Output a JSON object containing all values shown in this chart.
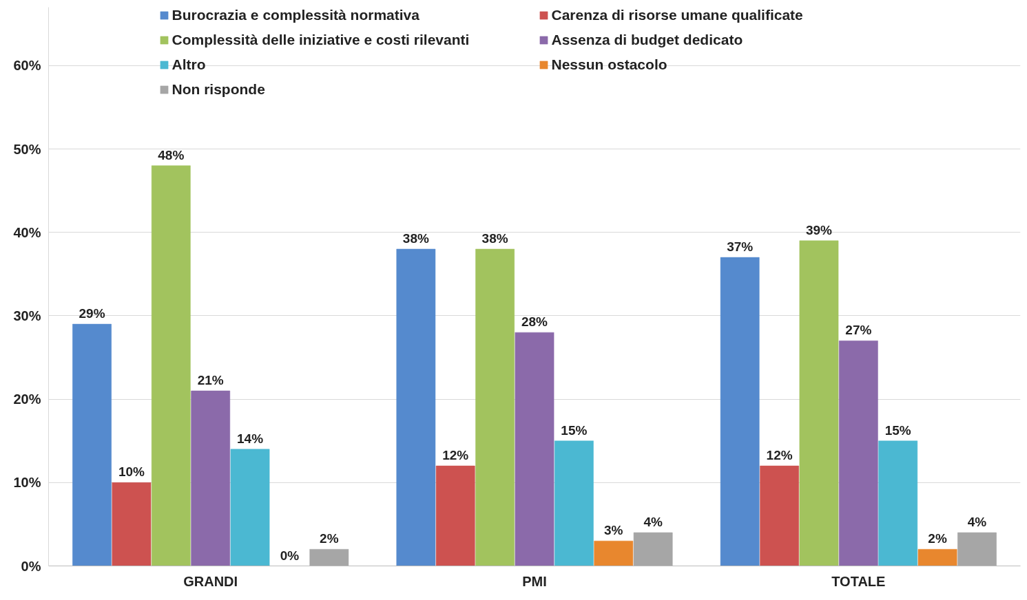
{
  "chart_data": {
    "type": "bar",
    "categories": [
      "GRANDI",
      "PMI",
      "TOTALE"
    ],
    "series": [
      {
        "name": "Burocrazia e complessità normativa",
        "color": "#558ace",
        "values": [
          29,
          38,
          37
        ],
        "value_labels": [
          "29%",
          "38%",
          "37%"
        ]
      },
      {
        "name": "Carenza di risorse umane qualificate",
        "color": "#cd5250",
        "values": [
          10,
          12,
          12
        ],
        "value_labels": [
          "10%",
          "12%",
          "12%"
        ]
      },
      {
        "name": "Complessità delle iniziative e costi rilevanti",
        "color": "#a2c35e",
        "values": [
          48,
          38,
          39
        ],
        "value_labels": [
          "48%",
          "38%",
          "39%"
        ]
      },
      {
        "name": "Assenza di budget dedicato",
        "color": "#8b6aaa",
        "values": [
          21,
          28,
          27
        ],
        "value_labels": [
          "21%",
          "28%",
          "27%"
        ]
      },
      {
        "name": "Altro",
        "color": "#4bb8d2",
        "values": [
          14,
          15,
          15
        ],
        "value_labels": [
          "14%",
          "15%",
          "15%"
        ]
      },
      {
        "name": "Nessun ostacolo",
        "color": "#e8872e",
        "values": [
          0,
          3,
          2
        ],
        "value_labels": [
          "0%",
          "3%",
          "2%"
        ]
      },
      {
        "name": "Non risponde",
        "color": "#a6a6a6",
        "values": [
          2,
          4,
          4
        ],
        "value_labels": [
          "2%",
          "4%",
          "4%"
        ]
      }
    ],
    "ylim": [
      0,
      67
    ],
    "yticks": [
      {
        "value": 0,
        "label": "0%"
      },
      {
        "value": 10,
        "label": "10%"
      },
      {
        "value": 20,
        "label": "20%"
      },
      {
        "value": 30,
        "label": "30%"
      },
      {
        "value": 40,
        "label": "40%"
      },
      {
        "value": 50,
        "label": "50%"
      },
      {
        "value": 60,
        "label": "60%"
      }
    ],
    "grid": "y",
    "legend": "top"
  }
}
